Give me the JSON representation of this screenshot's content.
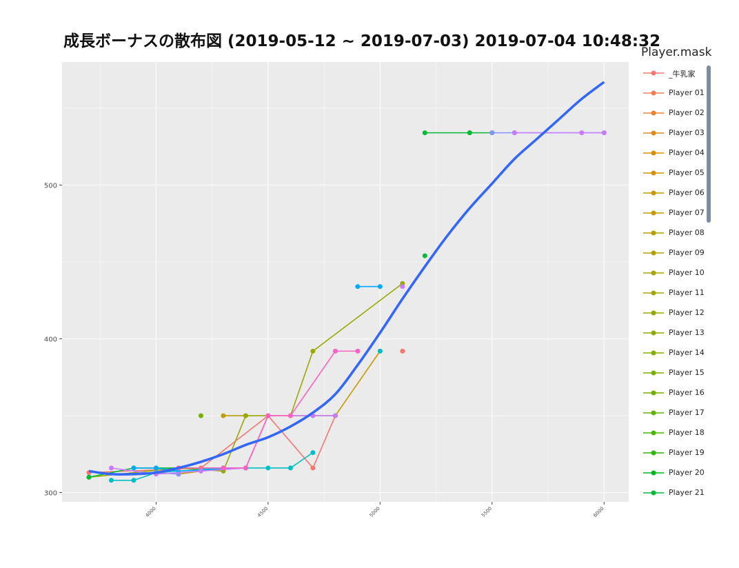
{
  "title": "成長ボーナスの散布図 (2019-05-12 ~ 2019-07-03) 2019-07-04 10:48:32",
  "legend": {
    "title": "Player.mask",
    "items": [
      {
        "label": "_牛乳家",
        "color": "#F8766D"
      },
      {
        "label": "Player 01",
        "color": "#F27D52"
      },
      {
        "label": "Player 02",
        "color": "#EA8331"
      },
      {
        "label": "Player 03",
        "color": "#E2891E"
      },
      {
        "label": "Player 04",
        "color": "#DA8F00"
      },
      {
        "label": "Player 05",
        "color": "#D39200"
      },
      {
        "label": "Player 06",
        "color": "#CC9600"
      },
      {
        "label": "Player 07",
        "color": "#C49A00"
      },
      {
        "label": "Player 08",
        "color": "#BB9D00"
      },
      {
        "label": "Player 09",
        "color": "#B3A000"
      },
      {
        "label": "Player 10",
        "color": "#AAA300"
      },
      {
        "label": "Player 11",
        "color": "#A3A500"
      },
      {
        "label": "Player 12",
        "color": "#99A800"
      },
      {
        "label": "Player 13",
        "color": "#8FAA00"
      },
      {
        "label": "Player 14",
        "color": "#85AD00"
      },
      {
        "label": "Player 15",
        "color": "#7CAE00"
      },
      {
        "label": "Player 16",
        "color": "#6FB000"
      },
      {
        "label": "Player 17",
        "color": "#5EB300"
      },
      {
        "label": "Player 18",
        "color": "#49B500"
      },
      {
        "label": "Player 19",
        "color": "#2BB700"
      },
      {
        "label": "Player 20",
        "color": "#00B81F"
      },
      {
        "label": "Player 21",
        "color": "#00BA38"
      }
    ]
  },
  "chart_data": {
    "type": "line",
    "title": "成長ボーナスの散布図 (2019-05-12 ~ 2019-07-03) 2019-07-04 10:48:32",
    "xlabel": "",
    "ylabel": "",
    "xlim": [
      3580,
      6110
    ],
    "ylim": [
      294,
      580
    ],
    "x_ticks": [
      4000,
      4500,
      5000,
      5500,
      6000
    ],
    "x_tick_labels": [
      "4000",
      "4500",
      "5000",
      "5500",
      "6000"
    ],
    "y_ticks": [
      300,
      400,
      500
    ],
    "y_tick_labels": [
      "300",
      "400",
      "500"
    ],
    "grid": true,
    "legend_position": "right",
    "background": "#EBEBEB",
    "series": [
      {
        "color": "#F8766D",
        "points": [
          [
            3700,
            313
          ],
          [
            4200,
            316
          ],
          [
            4500,
            350
          ],
          [
            4700,
            316
          ],
          [
            4800,
            350
          ]
        ]
      },
      {
        "color": "#F8766D",
        "points": [
          [
            5100,
            392
          ]
        ]
      },
      {
        "color": "#C49A00",
        "points": [
          [
            4100,
            312
          ],
          [
            4300,
            316
          ],
          [
            4400,
            316
          ],
          [
            4500,
            350
          ],
          [
            4800,
            350
          ],
          [
            5000,
            392
          ]
        ]
      },
      {
        "color": "#BB9D00",
        "points": [
          [
            4300,
            350
          ],
          [
            4400,
            350
          ]
        ]
      },
      {
        "color": "#D39200",
        "points": [
          [
            5400,
            534
          ]
        ]
      },
      {
        "color": "#99A800",
        "points": [
          [
            3700,
            310
          ],
          [
            4100,
            316
          ],
          [
            4300,
            314
          ],
          [
            4400,
            350
          ],
          [
            4600,
            350
          ],
          [
            4700,
            392
          ],
          [
            5100,
            436
          ]
        ]
      },
      {
        "color": "#6FB000",
        "points": [
          [
            4200,
            350
          ]
        ]
      },
      {
        "color": "#00BA38",
        "points": [
          [
            3700,
            310
          ],
          [
            3900,
            316
          ],
          [
            4000,
            316
          ],
          [
            4300,
            316
          ],
          [
            4400,
            316
          ]
        ]
      },
      {
        "color": "#00BA38",
        "points": [
          [
            5200,
            454
          ]
        ]
      },
      {
        "color": "#00BA38",
        "points": [
          [
            5200,
            534
          ],
          [
            5400,
            534
          ],
          [
            5500,
            534
          ]
        ]
      },
      {
        "color": "#00BFC4",
        "points": [
          [
            3800,
            308
          ],
          [
            3900,
            308
          ],
          [
            4000,
            313
          ],
          [
            4300,
            316
          ],
          [
            4500,
            316
          ],
          [
            4600,
            316
          ],
          [
            4700,
            326
          ]
        ]
      },
      {
        "color": "#00BFC4",
        "points": [
          [
            5000,
            392
          ]
        ]
      },
      {
        "color": "#00A9FF",
        "points": [
          [
            3900,
            316
          ],
          [
            4000,
            316
          ],
          [
            4100,
            314
          ],
          [
            4400,
            316
          ]
        ]
      },
      {
        "color": "#00A9FF",
        "points": [
          [
            4900,
            434
          ],
          [
            5000,
            434
          ]
        ]
      },
      {
        "color": "#8494FF",
        "points": [
          [
            4000,
            313
          ],
          [
            4100,
            312
          ]
        ]
      },
      {
        "color": "#8494FF",
        "points": [
          [
            5500,
            534
          ],
          [
            5600,
            534
          ],
          [
            6000,
            534
          ]
        ]
      },
      {
        "color": "#C77CFF",
        "points": [
          [
            3800,
            316
          ],
          [
            4000,
            312
          ],
          [
            4200,
            314
          ],
          [
            4400,
            316
          ],
          [
            4500,
            350
          ],
          [
            4700,
            350
          ],
          [
            4800,
            350
          ]
        ]
      },
      {
        "color": "#C77CFF",
        "points": [
          [
            5100,
            434
          ]
        ]
      },
      {
        "color": "#C77CFF",
        "points": [
          [
            5600,
            534
          ],
          [
            5900,
            534
          ],
          [
            6000,
            534
          ]
        ]
      },
      {
        "color": "#FF61C3",
        "points": [
          [
            4100,
            316
          ],
          [
            4300,
            316
          ],
          [
            4400,
            316
          ],
          [
            4500,
            350
          ],
          [
            4600,
            350
          ],
          [
            4800,
            392
          ],
          [
            4900,
            392
          ]
        ]
      }
    ],
    "smooth": {
      "color": "#3366FF",
      "points": [
        [
          3700,
          314
        ],
        [
          3800,
          312
        ],
        [
          3900,
          312
        ],
        [
          4000,
          313
        ],
        [
          4100,
          316
        ],
        [
          4200,
          320
        ],
        [
          4300,
          325
        ],
        [
          4400,
          331
        ],
        [
          4500,
          336
        ],
        [
          4600,
          343
        ],
        [
          4700,
          352
        ],
        [
          4800,
          364
        ],
        [
          4900,
          383
        ],
        [
          5000,
          404
        ],
        [
          5100,
          426
        ],
        [
          5200,
          447
        ],
        [
          5300,
          467
        ],
        [
          5400,
          485
        ],
        [
          5500,
          501
        ],
        [
          5600,
          517
        ],
        [
          5700,
          530
        ],
        [
          5800,
          543
        ],
        [
          5900,
          556
        ],
        [
          6000,
          567
        ]
      ]
    }
  }
}
